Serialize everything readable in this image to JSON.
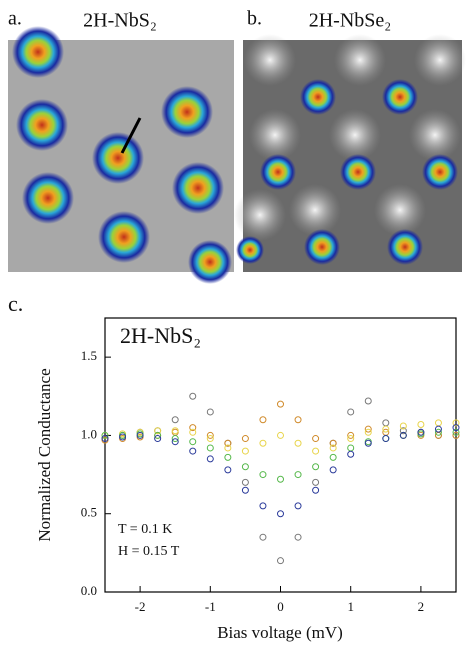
{
  "panels": [
    {
      "label": "a.",
      "title": "2H-NbS₂"
    },
    {
      "label": "b.",
      "title": "2H-NbSe₂"
    }
  ],
  "chart_data": {
    "type": "scatter",
    "panel_label": "c.",
    "inset_title": "2H-NbS₂",
    "x_label": "Bias voltage (mV)",
    "y_label": "Normalized Conductance",
    "annotations": [
      "T = 0.1 K",
      "H = 0.15 T"
    ],
    "x": [
      -2.5,
      -2.25,
      -2,
      -1.75,
      -1.5,
      -1.25,
      -1,
      -0.75,
      -0.5,
      -0.25,
      0,
      0.25,
      0.5,
      0.75,
      1,
      1.25,
      1.5,
      1.75,
      2,
      2.25,
      2.5
    ],
    "series": [
      {
        "color": "#777777",
        "values": [
          0.98,
          1.0,
          1.02,
          1.03,
          1.1,
          1.25,
          1.15,
          0.95,
          0.7,
          0.35,
          0.2,
          0.35,
          0.7,
          0.95,
          1.15,
          1.22,
          1.08,
          1.03,
          1.02,
          1.0,
          1.0
        ]
      },
      {
        "color": "#d08a2a",
        "values": [
          0.97,
          0.98,
          0.99,
          1.0,
          1.02,
          1.05,
          1.0,
          0.95,
          0.98,
          1.1,
          1.2,
          1.1,
          0.98,
          0.95,
          1.0,
          1.04,
          1.02,
          1.0,
          1.0,
          1.0,
          1.0
        ]
      },
      {
        "color": "#e8d44a",
        "values": [
          1.0,
          1.01,
          1.02,
          1.03,
          1.03,
          1.02,
          0.98,
          0.92,
          0.9,
          0.95,
          1.0,
          0.95,
          0.9,
          0.92,
          0.98,
          1.02,
          1.04,
          1.06,
          1.07,
          1.08,
          1.08
        ]
      },
      {
        "color": "#55b84a",
        "values": [
          1.0,
          1.0,
          1.01,
          1.0,
          0.98,
          0.96,
          0.92,
          0.86,
          0.8,
          0.75,
          0.72,
          0.75,
          0.8,
          0.86,
          0.92,
          0.96,
          0.98,
          1.0,
          1.01,
          1.02,
          1.02
        ]
      },
      {
        "color": "#2a3a9a",
        "values": [
          0.98,
          0.99,
          1.0,
          0.98,
          0.96,
          0.9,
          0.85,
          0.78,
          0.65,
          0.55,
          0.5,
          0.55,
          0.65,
          0.78,
          0.88,
          0.95,
          0.98,
          1.0,
          1.02,
          1.04,
          1.05
        ]
      }
    ],
    "xlim": [
      -2.5,
      2.5
    ],
    "xticks": [
      -2,
      -1,
      0,
      1,
      2
    ],
    "ylim": [
      0,
      1.75
    ],
    "yticks": [
      {
        "value": 0,
        "label": "0.0"
      },
      0.5,
      {
        "value": 1,
        "label": "1.0"
      },
      1.5
    ]
  }
}
